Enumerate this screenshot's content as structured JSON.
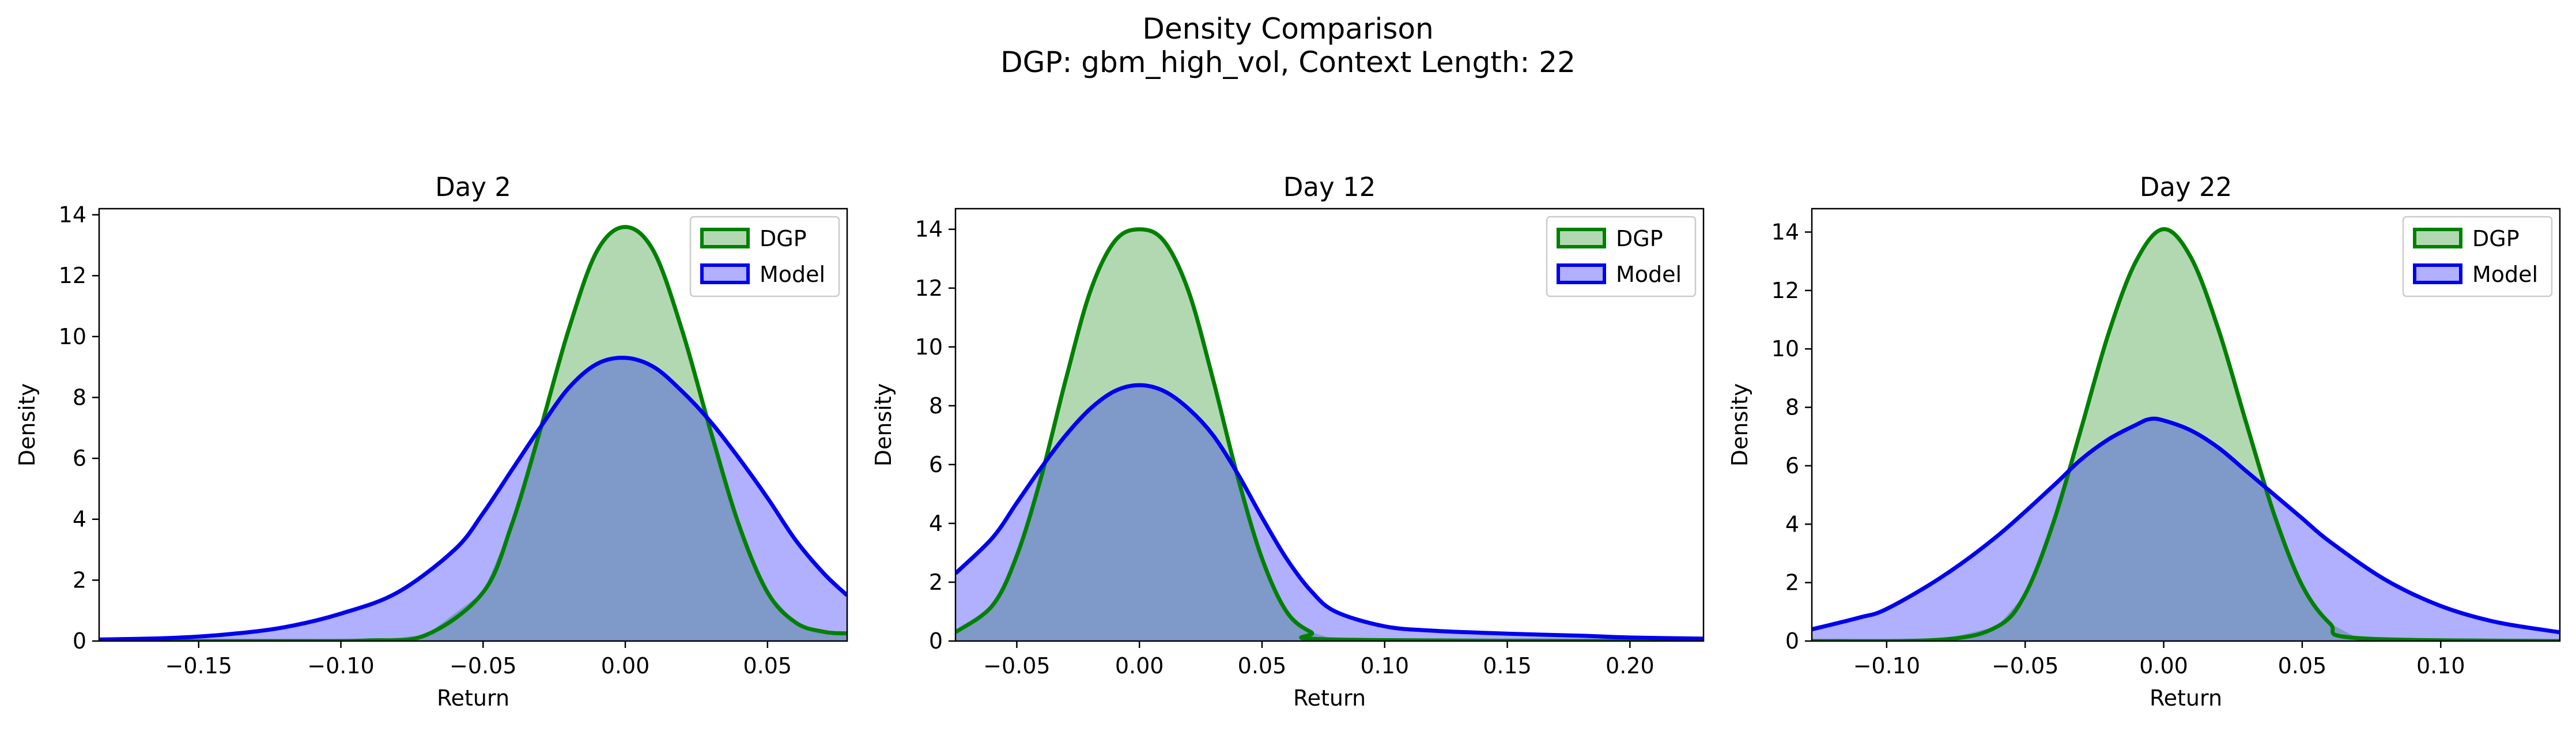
{
  "figure": {
    "title": "Density Comparison",
    "subtitle": "DGP: gbm_high_vol, Context Length: 22"
  },
  "colors": {
    "dgp_line": "#008000",
    "dgp_fill": "#b2d8b2",
    "model_line": "#0000ee",
    "model_fill": "#b0b0ff",
    "overlap_fill": "#7f99c8"
  },
  "chart_data": [
    {
      "type": "area",
      "title": "Day 2",
      "xlabel": "Return",
      "ylabel": "Density",
      "xlim": [
        -0.185,
        0.078
      ],
      "ylim": [
        0,
        14.2
      ],
      "xticks": [
        -0.15,
        -0.1,
        -0.05,
        0.0,
        0.05
      ],
      "xtick_labels": [
        "−0.15",
        "−0.10",
        "−0.05",
        "0.00",
        "0.05"
      ],
      "yticks": [
        0,
        2,
        4,
        6,
        8,
        10,
        12,
        14
      ],
      "ytick_labels": [
        "0",
        "2",
        "4",
        "6",
        "8",
        "10",
        "12",
        "14"
      ],
      "legend": {
        "position": "top-right",
        "entries": [
          "DGP",
          "Model"
        ]
      },
      "series": [
        {
          "name": "DGP",
          "x": [
            -0.185,
            -0.12,
            -0.09,
            -0.07,
            -0.05,
            -0.04,
            -0.03,
            -0.02,
            -0.01,
            0.0,
            0.01,
            0.02,
            0.03,
            0.04,
            0.05,
            0.06,
            0.07,
            0.078
          ],
          "y": [
            0,
            0,
            0.02,
            0.2,
            1.6,
            3.8,
            6.9,
            10.2,
            12.8,
            13.6,
            12.8,
            10.2,
            6.9,
            3.8,
            1.6,
            0.6,
            0.3,
            0.25
          ]
        },
        {
          "name": "Model",
          "x": [
            -0.185,
            -0.16,
            -0.14,
            -0.12,
            -0.1,
            -0.08,
            -0.06,
            -0.05,
            -0.04,
            -0.03,
            -0.02,
            -0.01,
            0.0,
            0.01,
            0.02,
            0.03,
            0.04,
            0.05,
            0.06,
            0.07,
            0.078
          ],
          "y": [
            0.05,
            0.1,
            0.22,
            0.45,
            0.9,
            1.6,
            3.0,
            4.2,
            5.6,
            7.0,
            8.3,
            9.1,
            9.3,
            9.0,
            8.2,
            7.2,
            6.0,
            4.7,
            3.3,
            2.2,
            1.5
          ]
        }
      ]
    },
    {
      "type": "area",
      "title": "Day 12",
      "xlabel": "Return",
      "ylabel": "Density",
      "xlim": [
        -0.075,
        0.23
      ],
      "ylim": [
        0,
        14.7
      ],
      "xticks": [
        -0.05,
        0.0,
        0.05,
        0.1,
        0.15,
        0.2
      ],
      "xtick_labels": [
        "−0.05",
        "0.00",
        "0.05",
        "0.10",
        "0.15",
        "0.20"
      ],
      "yticks": [
        0,
        2,
        4,
        6,
        8,
        10,
        12,
        14
      ],
      "ytick_labels": [
        "0",
        "2",
        "4",
        "6",
        "8",
        "10",
        "12",
        "14"
      ],
      "legend": {
        "position": "top-right",
        "entries": [
          "DGP",
          "Model"
        ]
      },
      "series": [
        {
          "name": "DGP",
          "x": [
            -0.075,
            -0.06,
            -0.05,
            -0.04,
            -0.03,
            -0.02,
            -0.01,
            0.0,
            0.01,
            0.02,
            0.03,
            0.04,
            0.05,
            0.06,
            0.07,
            0.08,
            0.23
          ],
          "y": [
            0.3,
            1.2,
            2.9,
            5.6,
            8.9,
            11.9,
            13.6,
            14.0,
            13.6,
            11.9,
            8.9,
            5.6,
            2.8,
            1.0,
            0.3,
            0.05,
            0
          ]
        },
        {
          "name": "Model",
          "x": [
            -0.075,
            -0.06,
            -0.05,
            -0.04,
            -0.03,
            -0.02,
            -0.01,
            0.0,
            0.01,
            0.02,
            0.03,
            0.04,
            0.05,
            0.06,
            0.07,
            0.08,
            0.1,
            0.12,
            0.15,
            0.18,
            0.2,
            0.23
          ],
          "y": [
            2.3,
            3.5,
            4.7,
            5.9,
            7.0,
            7.9,
            8.5,
            8.7,
            8.5,
            7.9,
            7.0,
            5.7,
            4.2,
            2.8,
            1.7,
            1.0,
            0.5,
            0.35,
            0.25,
            0.18,
            0.12,
            0.08
          ]
        }
      ]
    },
    {
      "type": "area",
      "title": "Day 22",
      "xlabel": "Return",
      "ylabel": "Density",
      "xlim": [
        -0.127,
        0.143
      ],
      "ylim": [
        0,
        14.8
      ],
      "xticks": [
        -0.1,
        -0.05,
        0.0,
        0.05,
        0.1
      ],
      "xtick_labels": [
        "−0.10",
        "−0.05",
        "0.00",
        "0.05",
        "0.10"
      ],
      "yticks": [
        0,
        2,
        4,
        6,
        8,
        10,
        12,
        14
      ],
      "ytick_labels": [
        "0",
        "2",
        "4",
        "6",
        "8",
        "10",
        "12",
        "14"
      ],
      "legend": {
        "position": "top-right",
        "entries": [
          "DGP",
          "Model"
        ]
      },
      "series": [
        {
          "name": "DGP",
          "x": [
            -0.127,
            -0.08,
            -0.06,
            -0.05,
            -0.04,
            -0.03,
            -0.02,
            -0.01,
            0.0,
            0.01,
            0.02,
            0.03,
            0.04,
            0.05,
            0.06,
            0.07,
            0.143
          ],
          "y": [
            0,
            0.05,
            0.5,
            1.6,
            4.0,
            7.2,
            10.5,
            13.0,
            14.1,
            13.1,
            10.6,
            7.4,
            4.3,
            1.9,
            0.6,
            0.1,
            0
          ]
        },
        {
          "name": "Model",
          "x": [
            -0.127,
            -0.11,
            -0.1,
            -0.08,
            -0.06,
            -0.04,
            -0.03,
            -0.02,
            -0.01,
            -0.005,
            0.0,
            0.01,
            0.02,
            0.03,
            0.04,
            0.05,
            0.06,
            0.08,
            0.1,
            0.12,
            0.143
          ],
          "y": [
            0.4,
            0.8,
            1.1,
            2.2,
            3.6,
            5.3,
            6.2,
            6.9,
            7.4,
            7.6,
            7.55,
            7.2,
            6.6,
            5.8,
            5.0,
            4.2,
            3.4,
            2.1,
            1.2,
            0.65,
            0.3
          ]
        }
      ]
    }
  ]
}
